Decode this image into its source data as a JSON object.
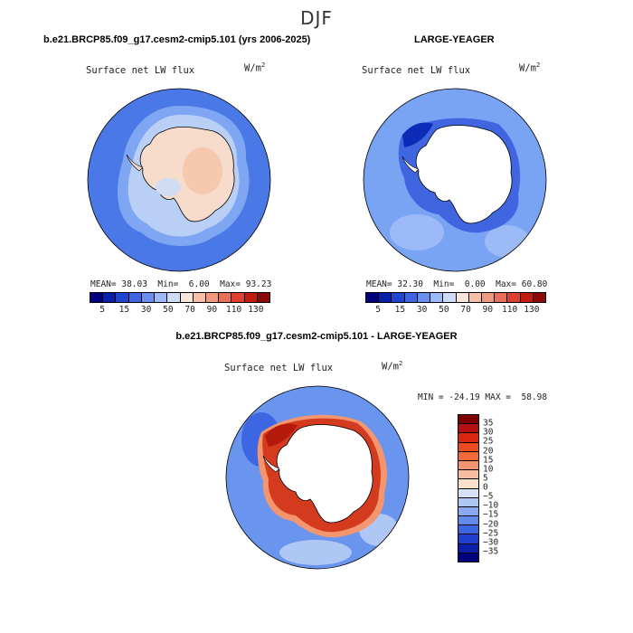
{
  "page_title": "DJF",
  "panels": [
    {
      "title": "b.e21.BRCP85.f09_g17.cesm2-cmip5.101 (yrs 2006-2025)",
      "field": "Surface net LW flux",
      "units_base": "W/m",
      "units_exp": "2",
      "stats": {
        "mean_label": "MEAN=",
        "mean": "38.03",
        "min_label": "Min=",
        "min": "6.00",
        "max_label": "Max=",
        "max": "93.23"
      }
    },
    {
      "title": "LARGE-YEAGER",
      "field": "Surface net LW flux",
      "units_base": "W/m",
      "units_exp": "2",
      "stats": {
        "mean_label": "MEAN=",
        "mean": "32.30",
        "min_label": "Min=",
        "min": "0.00",
        "max_label": "Max=",
        "max": "60.80"
      }
    },
    {
      "title": "b.e21.BRCP85.f09_g17.cesm2-cmip5.101 - LARGE-YEAGER",
      "field": "Surface net LW flux",
      "units_base": "W/m",
      "units_exp": "2",
      "stats": {
        "min_label": "MIN =",
        "min": "-24.19",
        "max_label": "MAX =",
        "max": "58.98"
      }
    }
  ],
  "colorbar_abs": {
    "labels": [
      "5",
      "15",
      "30",
      "50",
      "70",
      "90",
      "110",
      "130"
    ],
    "colors": [
      "#00007f",
      "#0a1fa8",
      "#1f45d0",
      "#3f66e0",
      "#6a8ff0",
      "#9cbaf8",
      "#cddcf6",
      "#f7e6d9",
      "#f6bfa6",
      "#ef9a7e",
      "#e8705a",
      "#dc4030",
      "#c21c12",
      "#8a0a0a"
    ]
  },
  "colorbar_diff": {
    "labels": [
      "35",
      "30",
      "25",
      "20",
      "15",
      "10",
      "5",
      "0",
      "−5",
      "−10",
      "−15",
      "−20",
      "−25",
      "−30",
      "−35"
    ],
    "colors": [
      "#7f0000",
      "#b50f0f",
      "#d8260f",
      "#ec4a22",
      "#f26a3c",
      "#f3956e",
      "#f6bda0",
      "#fbe2cd",
      "#d7e2f6",
      "#afc7f4",
      "#8aaaf0",
      "#628aea",
      "#3c66e2",
      "#1f40cf",
      "#0a20a8",
      "#00007f"
    ]
  },
  "map_colors": {
    "ocean_abs": "#4a78e6",
    "ocean_obs": "#79a4f4",
    "ocean_diff": "#6a95ee",
    "land_model": "#f8ddcb",
    "land_warm": "#f7cfb6",
    "land_cool": "#cfdcf4",
    "coast_blue": "#2a52d6",
    "coast_dark": "#0b2bb8",
    "diff_red": "#d43a1e",
    "diff_darkred": "#b31a0c",
    "white": "#ffffff"
  }
}
